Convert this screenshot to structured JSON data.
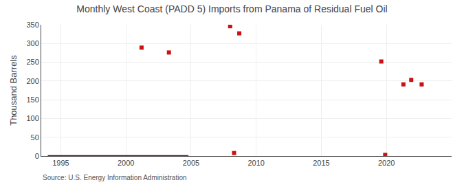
{
  "chart_data": {
    "type": "scatter",
    "title": "Monthly West Coast (PADD 5) Imports from Panama of Residual Fuel Oil",
    "ylabel": "Thousand Barrels",
    "annotations": [
      "Source: U.S. Energy Information Administration"
    ],
    "xlim": [
      1993.5,
      2025
    ],
    "ylim": [
      0,
      350
    ],
    "xticks": [
      1995,
      2000,
      2005,
      2010,
      2015,
      2020
    ],
    "yticks": [
      0,
      50,
      100,
      150,
      200,
      250,
      300,
      350
    ],
    "grid": true,
    "series": [
      {
        "type": "line",
        "color": "#8b0000",
        "line_style": "solid",
        "x": [
          1994.0,
          2004.8
        ],
        "values": [
          0,
          0
        ]
      },
      {
        "type": "scatter",
        "color": "#cc1111",
        "marker": "square",
        "x": [
          2001.2,
          2003.3,
          2008.0,
          2008.7,
          2019.6,
          2021.3,
          2021.9,
          2022.7
        ],
        "values": [
          289,
          276,
          346,
          327,
          252,
          191,
          203,
          191
        ]
      },
      {
        "type": "scatter",
        "color": "#cc1111",
        "marker": "square",
        "x": [
          2008.3,
          2019.9
        ],
        "values": [
          8,
          3
        ]
      }
    ]
  }
}
